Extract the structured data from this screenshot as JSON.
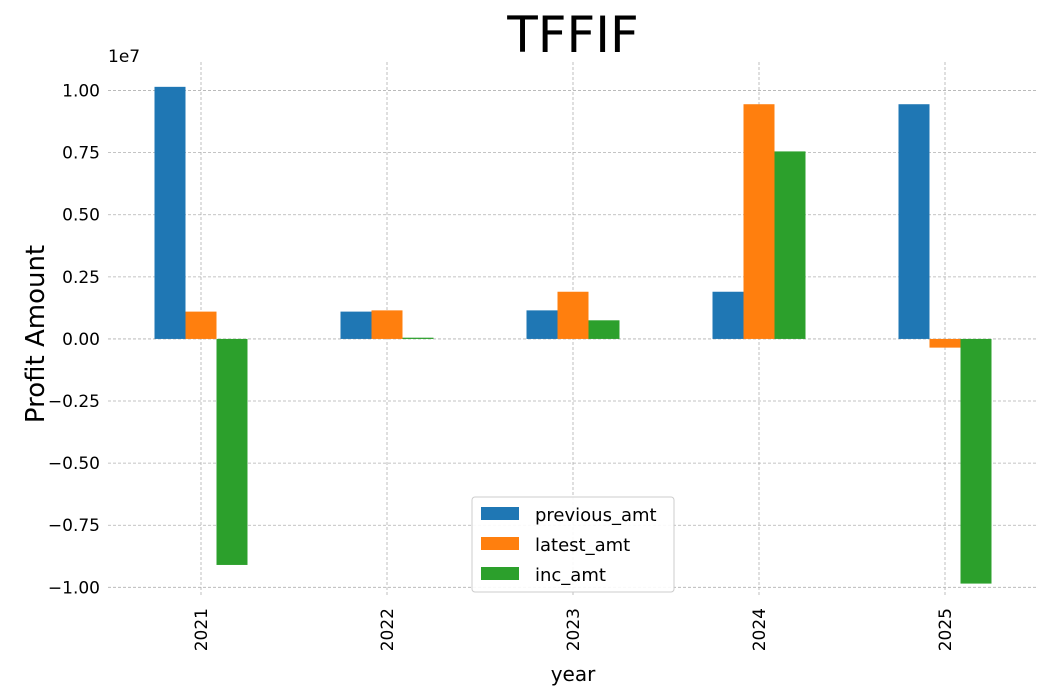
{
  "chart_data": {
    "type": "bar",
    "title": "TFFIF",
    "xlabel": "year",
    "ylabel": "Profit Amount",
    "y_offset_label": "1e7",
    "y_scale": 10000000,
    "categories": [
      "2021",
      "2022",
      "2023",
      "2024",
      "2025"
    ],
    "series": [
      {
        "name": "previous_amt",
        "color": "#1f77b4",
        "values": [
          10150000,
          1100000,
          1150000,
          1900000,
          9450000
        ]
      },
      {
        "name": "latest_amt",
        "color": "#ff7f0e",
        "values": [
          1100000,
          1150000,
          1900000,
          9450000,
          -350000
        ]
      },
      {
        "name": "inc_amt",
        "color": "#2ca02c",
        "values": [
          -9100000,
          50000,
          750000,
          7550000,
          -9850000
        ]
      }
    ],
    "ylim": [
      -10350000,
      11150000
    ],
    "yticks": [
      -10000000,
      -7500000,
      -5000000,
      -2500000,
      0,
      2500000,
      5000000,
      7500000,
      10000000
    ],
    "ytick_labels": [
      "−1.00",
      "−0.75",
      "−0.50",
      "−0.25",
      "0.00",
      "0.25",
      "0.50",
      "0.75",
      "1.00"
    ],
    "grid": true,
    "legend_position": "lower-center"
  }
}
